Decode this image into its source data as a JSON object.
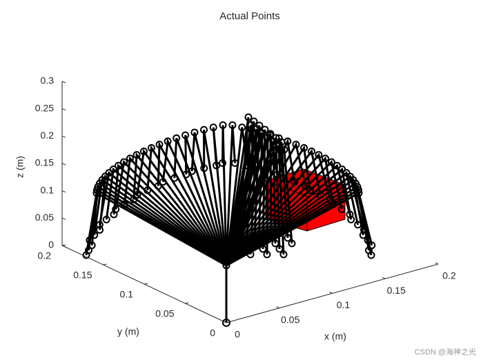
{
  "chart_data": {
    "type": "plot3d",
    "title": "Actual Points",
    "xlabel": "x (m)",
    "ylabel": "y (m)",
    "zlabel": "z (m)",
    "xlim": [
      0,
      0.2
    ],
    "ylim": [
      0,
      0.2
    ],
    "zlim": [
      0,
      0.3
    ],
    "xticks": [
      0,
      0.05,
      0.1,
      0.15,
      0.2
    ],
    "yticks": [
      0,
      0.05,
      0.1,
      0.15,
      0.2
    ],
    "zticks": [
      0,
      0.05,
      0.1,
      0.15,
      0.2,
      0.25,
      0.3
    ],
    "watermark": "CSDN @海神之光"
  }
}
